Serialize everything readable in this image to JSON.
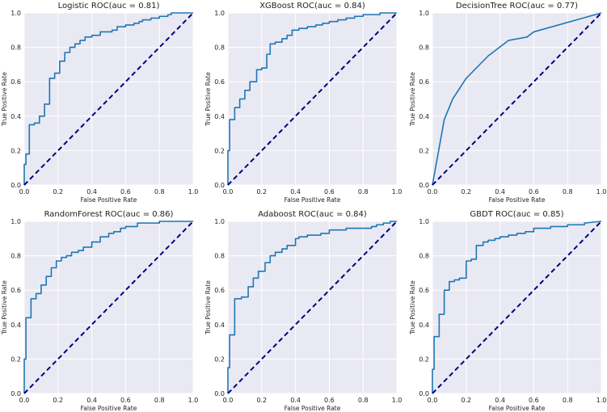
{
  "chart_data": [
    {
      "type": "line",
      "title": "Logistic ROC(auc = 0.81)",
      "xlabel": "False Positive Rate",
      "ylabel": "True Positive Rate",
      "xlim": [
        0,
        1
      ],
      "ylim": [
        0,
        1
      ],
      "xticks": [
        "0.0",
        "0.2",
        "0.4",
        "0.6",
        "0.8",
        "1.0"
      ],
      "yticks": [
        "0.0",
        "0.2",
        "0.4",
        "0.6",
        "0.8",
        "1.0"
      ],
      "grid": true,
      "series": [
        {
          "style": "solid",
          "color": "#1f77b4",
          "x": [
            0,
            0,
            0.01,
            0.01,
            0.03,
            0.03,
            0.06,
            0.06,
            0.09,
            0.09,
            0.12,
            0.12,
            0.15,
            0.15,
            0.18,
            0.18,
            0.21,
            0.21,
            0.24,
            0.24,
            0.27,
            0.27,
            0.3,
            0.3,
            0.33,
            0.33,
            0.36,
            0.36,
            0.4,
            0.4,
            0.45,
            0.45,
            0.52,
            0.52,
            0.55,
            0.55,
            0.6,
            0.6,
            0.65,
            0.65,
            0.68,
            0.68,
            0.7,
            0.7,
            0.75,
            0.75,
            0.8,
            0.8,
            0.85,
            0.85,
            0.87,
            0.87,
            1.0
          ],
          "y": [
            0,
            0.12,
            0.12,
            0.18,
            0.18,
            0.35,
            0.35,
            0.36,
            0.36,
            0.4,
            0.4,
            0.47,
            0.47,
            0.62,
            0.62,
            0.65,
            0.65,
            0.72,
            0.72,
            0.77,
            0.77,
            0.8,
            0.8,
            0.82,
            0.82,
            0.84,
            0.84,
            0.86,
            0.86,
            0.87,
            0.87,
            0.89,
            0.89,
            0.9,
            0.9,
            0.92,
            0.92,
            0.93,
            0.93,
            0.94,
            0.94,
            0.95,
            0.95,
            0.96,
            0.96,
            0.97,
            0.97,
            0.98,
            0.98,
            0.99,
            0.99,
            1.0,
            1.0
          ]
        },
        {
          "style": "dashed",
          "color": "#000080",
          "x": [
            0,
            1
          ],
          "y": [
            0,
            1
          ]
        }
      ]
    },
    {
      "type": "line",
      "title": "XGBoost ROC(auc = 0.84)",
      "xlabel": "False Positive Rate",
      "ylabel": "True Positive Rate",
      "xlim": [
        0,
        1
      ],
      "ylim": [
        0,
        1
      ],
      "xticks": [
        "0.0",
        "0.2",
        "0.4",
        "0.6",
        "0.8",
        "1.0"
      ],
      "yticks": [
        "0.0",
        "0.2",
        "0.4",
        "0.6",
        "0.8",
        "1.0"
      ],
      "grid": true,
      "series": [
        {
          "style": "solid",
          "color": "#1f77b4",
          "x": [
            0,
            0,
            0.01,
            0.01,
            0.04,
            0.04,
            0.07,
            0.07,
            0.1,
            0.1,
            0.13,
            0.13,
            0.17,
            0.17,
            0.2,
            0.2,
            0.23,
            0.23,
            0.25,
            0.25,
            0.28,
            0.28,
            0.32,
            0.32,
            0.35,
            0.35,
            0.38,
            0.38,
            0.42,
            0.42,
            0.47,
            0.47,
            0.52,
            0.52,
            0.56,
            0.56,
            0.6,
            0.6,
            0.65,
            0.65,
            0.7,
            0.7,
            0.75,
            0.75,
            0.8,
            0.8,
            0.9,
            0.9,
            0.95,
            0.95,
            1.0
          ],
          "y": [
            0,
            0.2,
            0.2,
            0.38,
            0.38,
            0.45,
            0.45,
            0.5,
            0.5,
            0.55,
            0.55,
            0.6,
            0.6,
            0.67,
            0.67,
            0.68,
            0.68,
            0.76,
            0.76,
            0.82,
            0.82,
            0.83,
            0.83,
            0.85,
            0.85,
            0.87,
            0.87,
            0.9,
            0.9,
            0.91,
            0.91,
            0.92,
            0.92,
            0.93,
            0.93,
            0.94,
            0.94,
            0.95,
            0.95,
            0.96,
            0.96,
            0.97,
            0.97,
            0.98,
            0.98,
            0.99,
            0.99,
            1.0,
            1.0,
            1.0,
            1.0
          ]
        },
        {
          "style": "dashed",
          "color": "#000080",
          "x": [
            0,
            1
          ],
          "y": [
            0,
            1
          ]
        }
      ]
    },
    {
      "type": "line",
      "title": "DecisionTree ROC(auc = 0.77)",
      "xlabel": "False Positive Rate",
      "ylabel": "True Positive Rate",
      "xlim": [
        0,
        1
      ],
      "ylim": [
        0,
        1
      ],
      "xticks": [
        "0.0",
        "0.2",
        "0.4",
        "0.6",
        "0.8",
        "1.0"
      ],
      "yticks": [
        "0.0",
        "0.2",
        "0.4",
        "0.6",
        "0.8",
        "1.0"
      ],
      "grid": true,
      "series": [
        {
          "style": "solid",
          "color": "#1f77b4",
          "x": [
            0,
            0.07,
            0.12,
            0.2,
            0.33,
            0.45,
            0.56,
            0.6,
            1.0
          ],
          "y": [
            0,
            0.38,
            0.5,
            0.62,
            0.75,
            0.84,
            0.86,
            0.89,
            1.0
          ]
        },
        {
          "style": "dashed",
          "color": "#000080",
          "x": [
            0,
            1
          ],
          "y": [
            0,
            1
          ]
        }
      ]
    },
    {
      "type": "line",
      "title": "RandomForest ROC(auc = 0.86)",
      "xlabel": "False Positive Rate",
      "ylabel": "True Positive Rate",
      "xlim": [
        0,
        1
      ],
      "ylim": [
        0,
        1
      ],
      "xticks": [
        "0.0",
        "0.2",
        "0.4",
        "0.6",
        "0.8",
        "1.0"
      ],
      "yticks": [
        "0.0",
        "0.2",
        "0.4",
        "0.6",
        "0.8",
        "1.0"
      ],
      "grid": true,
      "series": [
        {
          "style": "solid",
          "color": "#1f77b4",
          "x": [
            0,
            0,
            0.01,
            0.01,
            0.04,
            0.04,
            0.07,
            0.07,
            0.1,
            0.1,
            0.13,
            0.13,
            0.16,
            0.16,
            0.19,
            0.19,
            0.22,
            0.22,
            0.25,
            0.25,
            0.28,
            0.28,
            0.32,
            0.32,
            0.35,
            0.35,
            0.4,
            0.4,
            0.45,
            0.45,
            0.5,
            0.5,
            0.53,
            0.53,
            0.57,
            0.57,
            0.6,
            0.6,
            0.67,
            0.67,
            0.8,
            0.8,
            1.0
          ],
          "y": [
            0,
            0.2,
            0.2,
            0.44,
            0.44,
            0.55,
            0.55,
            0.58,
            0.58,
            0.63,
            0.63,
            0.68,
            0.68,
            0.73,
            0.73,
            0.77,
            0.77,
            0.79,
            0.79,
            0.8,
            0.8,
            0.82,
            0.82,
            0.83,
            0.83,
            0.85,
            0.85,
            0.88,
            0.88,
            0.91,
            0.91,
            0.93,
            0.93,
            0.94,
            0.94,
            0.96,
            0.96,
            0.97,
            0.97,
            0.99,
            0.99,
            1.0,
            1.0
          ]
        },
        {
          "style": "dashed",
          "color": "#000080",
          "x": [
            0,
            1
          ],
          "y": [
            0,
            1
          ]
        }
      ]
    },
    {
      "type": "line",
      "title": "Adaboost ROC(auc = 0.84)",
      "xlabel": "False Positive Rate",
      "ylabel": "True Positive Rate",
      "xlim": [
        0,
        1
      ],
      "ylim": [
        0,
        1
      ],
      "xticks": [
        "0.0",
        "0.2",
        "0.4",
        "0.6",
        "0.8",
        "1.0"
      ],
      "yticks": [
        "0.0",
        "0.2",
        "0.4",
        "0.6",
        "0.8",
        "1.0"
      ],
      "grid": true,
      "series": [
        {
          "style": "solid",
          "color": "#1f77b4",
          "x": [
            0,
            0,
            0.01,
            0.01,
            0.04,
            0.04,
            0.08,
            0.08,
            0.12,
            0.12,
            0.15,
            0.15,
            0.18,
            0.18,
            0.22,
            0.22,
            0.25,
            0.25,
            0.28,
            0.28,
            0.32,
            0.32,
            0.35,
            0.35,
            0.4,
            0.4,
            0.42,
            0.42,
            0.47,
            0.47,
            0.55,
            0.55,
            0.6,
            0.6,
            0.7,
            0.7,
            0.85,
            0.85,
            0.88,
            0.88,
            0.92,
            0.92,
            0.96,
            0.96,
            1.0
          ],
          "y": [
            0,
            0.15,
            0.15,
            0.34,
            0.34,
            0.55,
            0.55,
            0.56,
            0.56,
            0.62,
            0.62,
            0.67,
            0.67,
            0.71,
            0.71,
            0.76,
            0.76,
            0.8,
            0.8,
            0.82,
            0.82,
            0.84,
            0.84,
            0.86,
            0.86,
            0.9,
            0.9,
            0.91,
            0.91,
            0.92,
            0.92,
            0.93,
            0.93,
            0.95,
            0.95,
            0.96,
            0.96,
            0.97,
            0.97,
            0.98,
            0.98,
            0.99,
            0.99,
            1.0,
            1.0
          ]
        },
        {
          "style": "dashed",
          "color": "#000080",
          "x": [
            0,
            1
          ],
          "y": [
            0,
            1
          ]
        }
      ]
    },
    {
      "type": "line",
      "title": "GBDT ROC(auc = 0.85)",
      "xlabel": "False Positive Rate",
      "ylabel": "True Positive Rate",
      "xlim": [
        0,
        1
      ],
      "ylim": [
        0,
        1
      ],
      "xticks": [
        "0.0",
        "0.2",
        "0.4",
        "0.6",
        "0.8",
        "1.0"
      ],
      "yticks": [
        "0.0",
        "0.2",
        "0.4",
        "0.6",
        "0.8",
        "1.0"
      ],
      "grid": true,
      "series": [
        {
          "style": "solid",
          "color": "#1f77b4",
          "x": [
            0,
            0,
            0.01,
            0.01,
            0.04,
            0.04,
            0.07,
            0.07,
            0.1,
            0.1,
            0.13,
            0.13,
            0.16,
            0.16,
            0.2,
            0.2,
            0.23,
            0.23,
            0.26,
            0.26,
            0.3,
            0.3,
            0.33,
            0.33,
            0.37,
            0.37,
            0.4,
            0.4,
            0.45,
            0.45,
            0.5,
            0.5,
            0.55,
            0.55,
            0.6,
            0.6,
            0.7,
            0.7,
            0.8,
            0.8,
            0.9,
            0.9,
            1.0
          ],
          "y": [
            0,
            0.14,
            0.14,
            0.33,
            0.33,
            0.46,
            0.46,
            0.6,
            0.6,
            0.65,
            0.65,
            0.66,
            0.66,
            0.67,
            0.67,
            0.77,
            0.77,
            0.78,
            0.78,
            0.86,
            0.86,
            0.88,
            0.88,
            0.89,
            0.89,
            0.9,
            0.9,
            0.91,
            0.91,
            0.92,
            0.92,
            0.93,
            0.93,
            0.94,
            0.94,
            0.96,
            0.96,
            0.97,
            0.97,
            0.98,
            0.98,
            0.99,
            1.0
          ]
        },
        {
          "style": "dashed",
          "color": "#000080",
          "x": [
            0,
            1
          ],
          "y": [
            0,
            1
          ]
        }
      ]
    }
  ]
}
